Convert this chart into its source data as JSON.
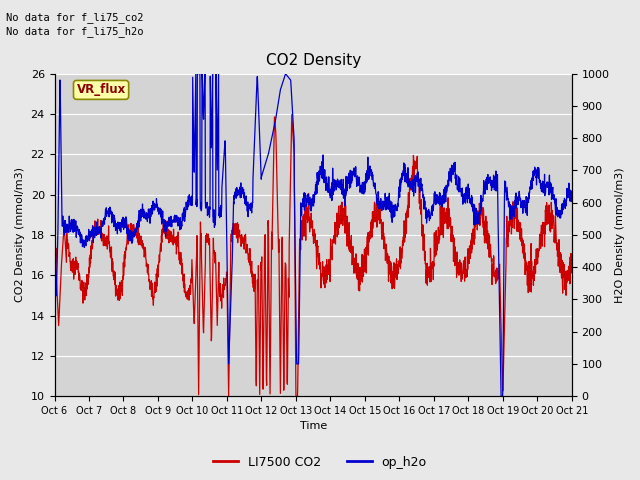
{
  "title": "CO2 Density",
  "xlabel": "Time",
  "ylabel_left": "CO2 Density (mmol/m3)",
  "ylabel_right": "H2O Density (mmol/m3)",
  "ylim_left": [
    10,
    26
  ],
  "ylim_right": [
    0,
    1000
  ],
  "yticks_left": [
    10,
    12,
    14,
    16,
    18,
    20,
    22,
    24,
    26
  ],
  "yticks_right": [
    0,
    100,
    200,
    300,
    400,
    500,
    600,
    700,
    800,
    900,
    1000
  ],
  "x_labels": [
    "Oct 6",
    "Oct 7",
    "Oct 8",
    "Oct 9",
    "Oct 10",
    "Oct 11",
    "Oct 12",
    "Oct 13",
    "Oct 14",
    "Oct 15",
    "Oct 16",
    "Oct 17",
    "Oct 18",
    "Oct 19",
    "Oct 20",
    "Oct 21"
  ],
  "no_data_text1": "No data for f_li75_co2",
  "no_data_text2": "No data for f_li75_h2o",
  "vr_flux_label": "VR_flux",
  "legend_co2_label": "LI7500 CO2",
  "legend_h2o_label": "op_h2o",
  "co2_color": "#cc0000",
  "h2o_color": "#0000cc",
  "bg_color": "#e8e8e8",
  "plot_bg_color": "#d4d4d4",
  "grid_color": "#ffffff",
  "vr_flux_bg": "#ffffaa",
  "vr_flux_text_color": "#8b0000",
  "n_days": 15,
  "n_pts": 2000
}
